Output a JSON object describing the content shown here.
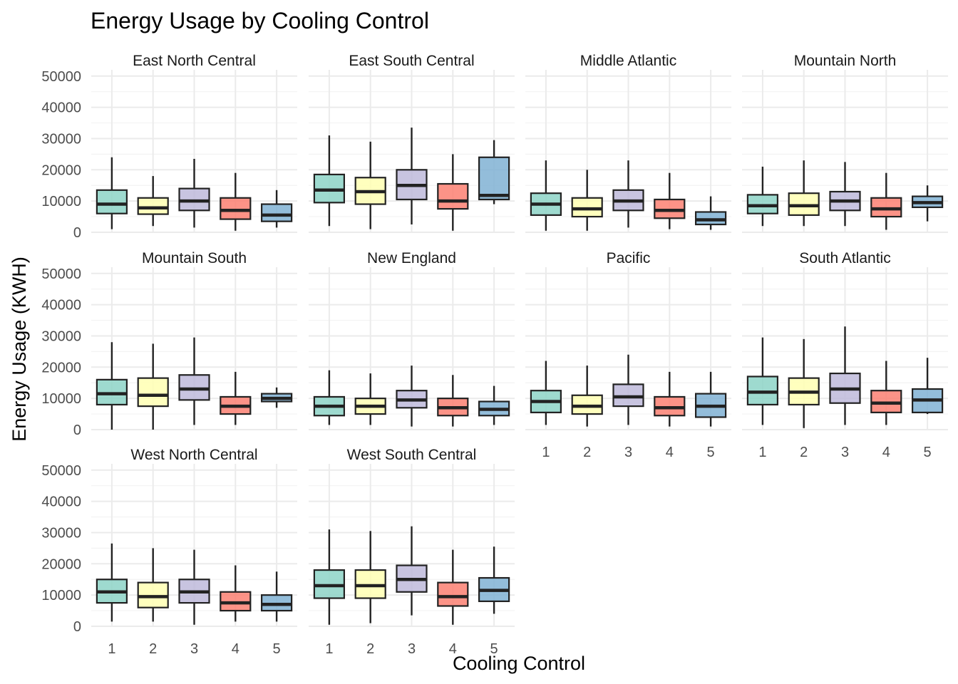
{
  "chart_data": {
    "type": "boxplot",
    "title": "Energy Usage by Cooling Control",
    "xlabel": "Cooling Control",
    "ylabel": "Energy Usage (KWH)",
    "categories": [
      "1",
      "2",
      "3",
      "4",
      "5"
    ],
    "y_ticks": [
      "0",
      "10000",
      "20000",
      "30000",
      "40000",
      "50000"
    ],
    "ylim": [
      0,
      52000
    ],
    "grid": true,
    "colors": [
      "#8dd3c7",
      "#ffffb3",
      "#bebada",
      "#fb8072",
      "#80b1d3"
    ],
    "panels": [
      {
        "name": "East North Central",
        "boxes": [
          {
            "min": 1000,
            "q1": 6000,
            "median": 9000,
            "q3": 13500,
            "max": 24000
          },
          {
            "min": 2000,
            "q1": 5800,
            "median": 7800,
            "q3": 11000,
            "max": 18000
          },
          {
            "min": 1500,
            "q1": 7000,
            "median": 10000,
            "q3": 14000,
            "max": 23500
          },
          {
            "min": 500,
            "q1": 4200,
            "median": 7000,
            "q3": 11000,
            "max": 19000
          },
          {
            "min": 1500,
            "q1": 3500,
            "median": 5500,
            "q3": 9000,
            "max": 13500
          }
        ]
      },
      {
        "name": "East South Central",
        "boxes": [
          {
            "min": 2000,
            "q1": 9500,
            "median": 13500,
            "q3": 18500,
            "max": 31000
          },
          {
            "min": 1000,
            "q1": 9000,
            "median": 13000,
            "q3": 17500,
            "max": 29000
          },
          {
            "min": 2500,
            "q1": 10500,
            "median": 15000,
            "q3": 20000,
            "max": 33500
          },
          {
            "min": 500,
            "q1": 7500,
            "median": 10000,
            "q3": 15500,
            "max": 25000
          },
          {
            "min": 9000,
            "q1": 10500,
            "median": 11800,
            "q3": 24000,
            "max": 29500
          }
        ]
      },
      {
        "name": "Middle Atlantic",
        "boxes": [
          {
            "min": 500,
            "q1": 5500,
            "median": 9000,
            "q3": 12500,
            "max": 23000
          },
          {
            "min": 500,
            "q1": 5000,
            "median": 7500,
            "q3": 11000,
            "max": 20000
          },
          {
            "min": 1500,
            "q1": 7000,
            "median": 10000,
            "q3": 13500,
            "max": 23000
          },
          {
            "min": 1000,
            "q1": 4500,
            "median": 7000,
            "q3": 10500,
            "max": 19000
          },
          {
            "min": 800,
            "q1": 2500,
            "median": 4000,
            "q3": 6500,
            "max": 11500
          }
        ]
      },
      {
        "name": "Mountain North",
        "boxes": [
          {
            "min": 2000,
            "q1": 6000,
            "median": 8500,
            "q3": 12000,
            "max": 21000
          },
          {
            "min": 2000,
            "q1": 5500,
            "median": 8500,
            "q3": 12500,
            "max": 23000
          },
          {
            "min": 2000,
            "q1": 7000,
            "median": 10000,
            "q3": 13000,
            "max": 22500
          },
          {
            "min": 800,
            "q1": 5000,
            "median": 7500,
            "q3": 11000,
            "max": 19000
          },
          {
            "min": 3500,
            "q1": 8000,
            "median": 9500,
            "q3": 11500,
            "max": 15000
          }
        ]
      },
      {
        "name": "Mountain South",
        "boxes": [
          {
            "min": 0,
            "q1": 8000,
            "median": 11500,
            "q3": 16000,
            "max": 28000
          },
          {
            "min": 0,
            "q1": 7500,
            "median": 11000,
            "q3": 16500,
            "max": 27500
          },
          {
            "min": 1500,
            "q1": 9500,
            "median": 13000,
            "q3": 17500,
            "max": 29500
          },
          {
            "min": 1500,
            "q1": 5000,
            "median": 7500,
            "q3": 10500,
            "max": 18500
          },
          {
            "min": 7000,
            "q1": 9000,
            "median": 10000,
            "q3": 11500,
            "max": 13500
          }
        ]
      },
      {
        "name": "New England",
        "boxes": [
          {
            "min": 1500,
            "q1": 4500,
            "median": 7500,
            "q3": 10500,
            "max": 19000
          },
          {
            "min": 1500,
            "q1": 5000,
            "median": 7500,
            "q3": 10000,
            "max": 18000
          },
          {
            "min": 1000,
            "q1": 7000,
            "median": 9500,
            "q3": 12500,
            "max": 20500
          },
          {
            "min": 1000,
            "q1": 4500,
            "median": 7000,
            "q3": 10000,
            "max": 17500
          },
          {
            "min": 1500,
            "q1": 4500,
            "median": 6500,
            "q3": 9000,
            "max": 14000
          }
        ]
      },
      {
        "name": "Pacific",
        "boxes": [
          {
            "min": 1500,
            "q1": 5500,
            "median": 9000,
            "q3": 12500,
            "max": 22000
          },
          {
            "min": 1000,
            "q1": 5000,
            "median": 7500,
            "q3": 11000,
            "max": 20500
          },
          {
            "min": 1500,
            "q1": 7500,
            "median": 10500,
            "q3": 14500,
            "max": 24000
          },
          {
            "min": 1000,
            "q1": 4500,
            "median": 7000,
            "q3": 10500,
            "max": 18500
          },
          {
            "min": 1000,
            "q1": 4000,
            "median": 7500,
            "q3": 11500,
            "max": 18500
          }
        ]
      },
      {
        "name": "South Atlantic",
        "boxes": [
          {
            "min": 1500,
            "q1": 8000,
            "median": 12000,
            "q3": 17000,
            "max": 29500
          },
          {
            "min": 500,
            "q1": 8000,
            "median": 12000,
            "q3": 16500,
            "max": 29000
          },
          {
            "min": 1500,
            "q1": 8500,
            "median": 13000,
            "q3": 18000,
            "max": 33000
          },
          {
            "min": 1500,
            "q1": 5500,
            "median": 8500,
            "q3": 12500,
            "max": 22000
          },
          {
            "min": 5000,
            "q1": 5500,
            "median": 9500,
            "q3": 13000,
            "max": 23000
          }
        ]
      },
      {
        "name": "West North Central",
        "boxes": [
          {
            "min": 1500,
            "q1": 7500,
            "median": 11000,
            "q3": 15000,
            "max": 26500
          },
          {
            "min": 1500,
            "q1": 6000,
            "median": 9500,
            "q3": 14000,
            "max": 25000
          },
          {
            "min": 500,
            "q1": 7500,
            "median": 11000,
            "q3": 15000,
            "max": 24500
          },
          {
            "min": 1500,
            "q1": 5000,
            "median": 7500,
            "q3": 11000,
            "max": 19500
          },
          {
            "min": 1500,
            "q1": 5000,
            "median": 7000,
            "q3": 10000,
            "max": 17500
          }
        ]
      },
      {
        "name": "West South Central",
        "boxes": [
          {
            "min": 500,
            "q1": 9000,
            "median": 13000,
            "q3": 18000,
            "max": 31000
          },
          {
            "min": 1000,
            "q1": 9000,
            "median": 13000,
            "q3": 18000,
            "max": 30500
          },
          {
            "min": 3500,
            "q1": 11000,
            "median": 15000,
            "q3": 19500,
            "max": 32000
          },
          {
            "min": 500,
            "q1": 6500,
            "median": 9500,
            "q3": 14000,
            "max": 24500
          },
          {
            "min": 4000,
            "q1": 8000,
            "median": 11500,
            "q3": 15500,
            "max": 25500
          }
        ]
      }
    ]
  }
}
